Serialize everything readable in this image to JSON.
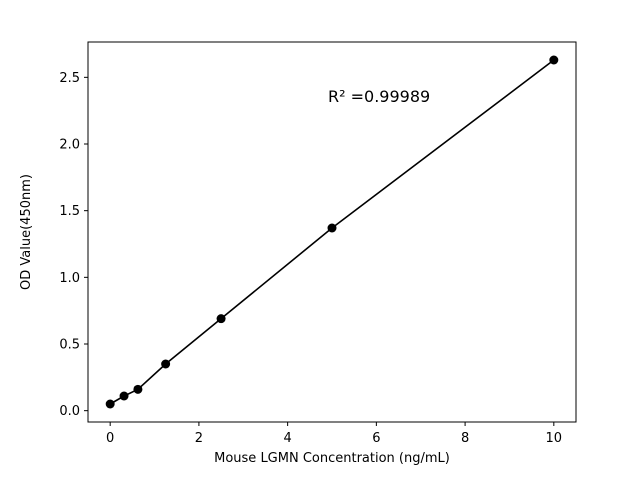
{
  "figure": {
    "background": "#ffffff",
    "foreground": "#000000"
  },
  "chart_data": {
    "type": "scatter",
    "title": "",
    "xlabel": "Mouse LGMN Concentration (ng/mL)",
    "ylabel": "OD Value(450nm)",
    "annotation": "R² =0.99989",
    "x": [
      0,
      0.3125,
      0.625,
      1.25,
      2.5,
      5,
      10
    ],
    "y": [
      0.05,
      0.11,
      0.16,
      0.35,
      0.69,
      1.37,
      2.63
    ],
    "has_fit_line": true,
    "marker": "filled-circle",
    "marker_color": "#000000",
    "line_color": "#000000",
    "xlim": [
      -0.5,
      10.5
    ],
    "ylim": [
      -0.085,
      2.765
    ],
    "xticks": [
      0,
      2,
      4,
      6,
      8,
      10
    ],
    "xtick_labels": [
      "0",
      "2",
      "4",
      "6",
      "8",
      "10"
    ],
    "yticks": [
      0,
      0.5,
      1.0,
      1.5,
      2.0,
      2.5
    ],
    "ytick_labels": [
      "0.0",
      "0.5",
      "1.0",
      "1.5",
      "2.0",
      "2.5"
    ],
    "grid": false,
    "legend_position": "none"
  }
}
